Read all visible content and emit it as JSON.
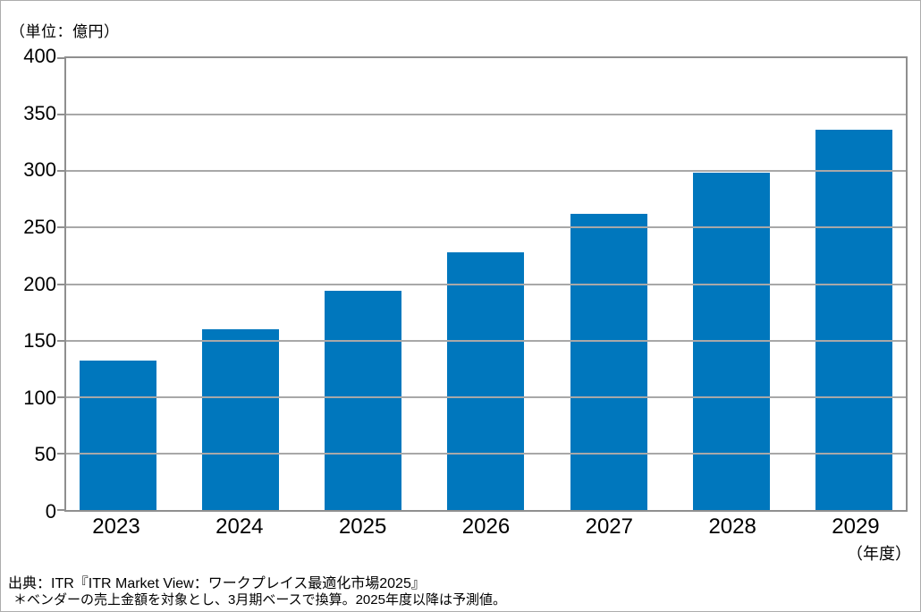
{
  "chart_data": {
    "type": "bar",
    "title": "",
    "unit_label": "（単位：億円）",
    "x_axis_unit_label": "（年度）",
    "categories": [
      "2023",
      "2024",
      "2025",
      "2026",
      "2027",
      "2028",
      "2029"
    ],
    "values": [
      132,
      160,
      194,
      228,
      262,
      299,
      337
    ],
    "ylim": [
      0,
      400
    ],
    "y_ticks": [
      0,
      50,
      100,
      150,
      200,
      250,
      300,
      350,
      400
    ],
    "grid": true,
    "legend": "none",
    "bar_color": "#0077bd",
    "gridline_color": "#a8a8a8",
    "axis_border_color": "#8f8f8f"
  },
  "footer": {
    "source_line": "出典：ITR『ITR Market View：ワークプレイス最適化市場2025』",
    "note_line": "＊ベンダーの売上金額を対象とし、3月期ベースで換算。2025年度以降は予測値。"
  }
}
